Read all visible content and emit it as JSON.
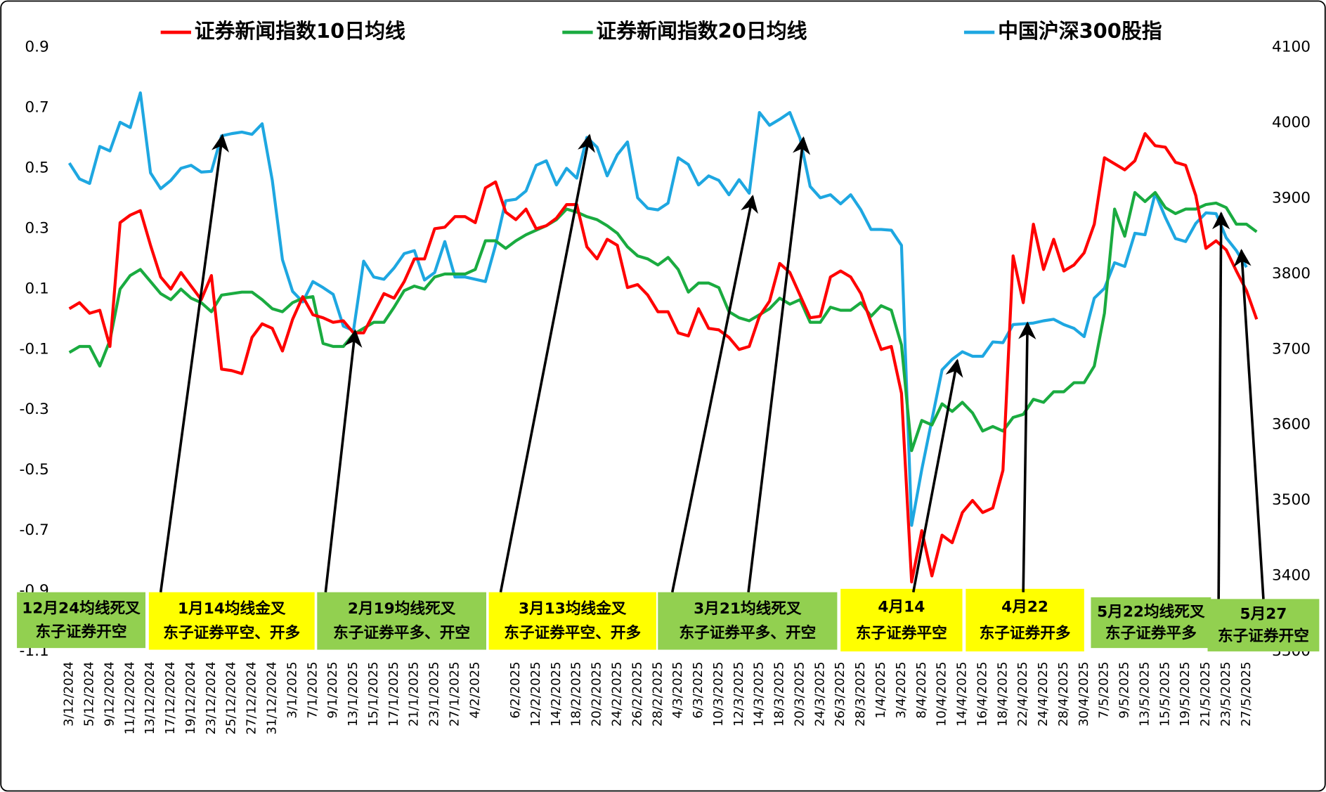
{
  "chart_data": {
    "type": "line",
    "legend": "top",
    "categories": [
      "3/12/2024",
      null,
      "5/12/2024",
      null,
      "9/12/2024",
      null,
      "11/12/2024",
      null,
      "13/12/2024",
      null,
      "17/12/2024",
      null,
      "19/12/2024",
      null,
      "23/12/2024",
      null,
      "25/12/2024",
      null,
      "27/12/2024",
      null,
      "31/12/2024",
      null,
      "3/1/2025",
      null,
      "7/1/2025",
      null,
      "9/1/2025",
      null,
      "13/1/2025",
      null,
      "15/1/2025",
      null,
      "17/1/2025",
      null,
      "21/1/2025",
      null,
      "23/1/2025",
      null,
      "27/1/2025",
      null,
      "4/2/2025",
      null,
      null,
      null,
      "6/2/2025",
      null,
      "12/2/2025",
      null,
      "14/2/2025",
      null,
      "18/2/2025",
      null,
      "20/2/2025",
      null,
      "24/2/2025",
      null,
      "26/2/2025",
      null,
      "28/2/2025",
      null,
      "4/3/2025",
      null,
      "6/3/2025",
      null,
      "10/3/2025",
      null,
      "12/3/2025",
      null,
      "14/3/2025",
      null,
      "18/3/2025",
      null,
      "20/3/2025",
      null,
      "24/3/2025",
      null,
      "26/3/2025",
      null,
      "28/3/2025",
      null,
      "1/4/2025",
      null,
      "3/4/2025",
      null,
      "8/4/2025",
      null,
      "10/4/2025",
      null,
      "14/4/2025",
      null,
      "16/4/2025",
      null,
      "18/4/2025",
      null,
      "22/4/2025",
      null,
      "24/4/2025",
      null,
      "28/4/2025",
      null,
      "30/4/2025",
      null,
      "7/5/2025",
      null,
      "9/5/2025",
      null,
      "13/5/2025",
      null,
      "15/5/2025",
      null,
      "19/5/2025",
      null,
      "21/5/2025",
      null,
      "23/5/2025",
      null,
      "27/5/2025",
      null
    ],
    "series": [
      {
        "name": "证券新闻指数10日均线",
        "color": "#ff0000",
        "values": [
          0.035,
          0.055,
          0.02,
          0.03,
          -0.09,
          0.32,
          0.345,
          0.36,
          0.245,
          0.14,
          0.1,
          0.155,
          0.11,
          0.065,
          0.145,
          -0.165,
          -0.17,
          -0.18,
          -0.06,
          -0.015,
          -0.03,
          -0.105,
          0.0,
          0.075,
          0.015,
          0.005,
          -0.01,
          -0.005,
          -0.045,
          -0.045,
          0.02,
          0.085,
          0.07,
          0.125,
          0.2,
          0.2,
          0.3,
          0.305,
          0.34,
          0.34,
          0.32,
          0.435,
          0.455,
          0.355,
          0.33,
          0.365,
          0.3,
          0.31,
          0.335,
          0.38,
          0.38,
          0.24,
          0.2,
          0.265,
          0.245,
          0.105,
          0.115,
          0.08,
          0.025,
          0.025,
          -0.045,
          -0.055,
          0.035,
          -0.03,
          -0.035,
          -0.06,
          -0.1,
          -0.09,
          0.01,
          0.06,
          0.185,
          0.155,
          0.08,
          0.005,
          0.01,
          0.14,
          0.16,
          0.14,
          0.085,
          -0.01,
          -0.1,
          -0.09,
          -0.245,
          -0.87,
          -0.7,
          -0.85,
          -0.715,
          -0.74,
          -0.64,
          -0.6,
          -0.64,
          -0.625,
          -0.5,
          0.21,
          0.055,
          0.315,
          0.165,
          0.265,
          0.16,
          0.18,
          0.22,
          0.315,
          0.535,
          0.515,
          0.495,
          0.525,
          0.615,
          0.575,
          0.57,
          0.52,
          0.51,
          0.41,
          0.235,
          0.26,
          0.23,
          0.16,
          0.095,
          0.0
        ]
      },
      {
        "name": "证券新闻指数20日均线",
        "color": "#1aab40",
        "values": [
          -0.11,
          -0.09,
          -0.09,
          -0.155,
          -0.07,
          0.1,
          0.145,
          0.165,
          0.125,
          0.085,
          0.065,
          0.1,
          0.07,
          0.055,
          0.025,
          0.08,
          0.085,
          0.09,
          0.09,
          0.065,
          0.035,
          0.025,
          0.055,
          0.07,
          0.075,
          -0.08,
          -0.09,
          -0.09,
          -0.05,
          -0.03,
          -0.01,
          -0.01,
          0.04,
          0.095,
          0.11,
          0.1,
          0.14,
          0.15,
          0.15,
          0.15,
          0.165,
          0.26,
          0.26,
          0.235,
          0.26,
          0.28,
          0.295,
          0.31,
          0.33,
          0.365,
          0.355,
          0.34,
          0.33,
          0.31,
          0.285,
          0.24,
          0.21,
          0.2,
          0.18,
          0.205,
          0.165,
          0.09,
          0.12,
          0.12,
          0.105,
          0.025,
          0.005,
          -0.005,
          0.015,
          0.035,
          0.07,
          0.05,
          0.065,
          -0.01,
          -0.01,
          0.04,
          0.03,
          0.03,
          0.055,
          0.01,
          0.045,
          0.03,
          -0.085,
          -0.435,
          -0.335,
          -0.35,
          -0.28,
          -0.305,
          -0.275,
          -0.31,
          -0.37,
          -0.355,
          -0.37,
          -0.325,
          -0.315,
          -0.265,
          -0.275,
          -0.24,
          -0.24,
          -0.21,
          -0.21,
          -0.155,
          0.02,
          0.365,
          0.275,
          0.42,
          0.39,
          0.42,
          0.37,
          0.35,
          0.365,
          0.365,
          0.38,
          0.385,
          0.37,
          0.315,
          0.315,
          0.29
        ]
      },
      {
        "name": "中国沪深300股指",
        "color": "#1ea7e1",
        "axis": "y2",
        "values": [
          3947,
          3926,
          3920,
          3969,
          3963,
          4001,
          3994,
          4040,
          3934,
          3913,
          3924,
          3940,
          3944,
          3935,
          3936,
          3983,
          3986,
          3988,
          3985,
          3999,
          3924,
          3819,
          3777,
          3763,
          3790,
          3782,
          3773,
          3731,
          3725,
          3817,
          3796,
          3793,
          3808,
          3827,
          3831,
          3792,
          3802,
          3843,
          3796,
          3796,
          3793,
          3790,
          3838,
          3897,
          3899,
          3910,
          3944,
          3950,
          3918,
          3940,
          3927,
          3981,
          3968,
          3930,
          3958,
          3975,
          3901,
          3887,
          3885,
          3894,
          3954,
          3945,
          3918,
          3930,
          3924,
          3905,
          3925,
          3907,
          4014,
          3997,
          4005,
          4014,
          3980,
          3916,
          3901,
          3905,
          3893,
          3905,
          3885,
          3859,
          3859,
          3858,
          3838,
          3467,
          3541,
          3607,
          3673,
          3687,
          3697,
          3691,
          3691,
          3710,
          3709,
          3733,
          3734,
          3735,
          3738,
          3740,
          3733,
          3728,
          3717,
          3768,
          3781,
          3815,
          3810,
          3854,
          3852,
          3907,
          3875,
          3847,
          3843,
          3867,
          3881,
          3880,
          3848,
          3831,
          3809,
          null
        ]
      }
    ],
    "ylim": [
      -1.1,
      0.9
    ],
    "yticks": [
      -1.1,
      -0.9,
      -0.7,
      -0.5,
      -0.3,
      -0.1,
      0.1,
      0.3,
      0.5,
      0.7,
      0.9
    ],
    "y2lim": [
      3300,
      4100
    ],
    "y2ticks": [
      3300,
      3400,
      3500,
      3600,
      3700,
      3800,
      3900,
      4000,
      4100
    ],
    "annotations": [
      {
        "lines": [
          "12月24均线死叉",
          "东子证券开空"
        ],
        "color": "#92d050"
      },
      {
        "lines": [
          "1月14均线金叉",
          "东子证券平空、开多"
        ],
        "color": "#ffff00"
      },
      {
        "lines": [
          "2月19均线死叉",
          "东子证券平多、开空"
        ],
        "color": "#92d050"
      },
      {
        "lines": [
          "3月13均线金叉",
          "东子证券平空、开多"
        ],
        "color": "#ffff00"
      },
      {
        "lines": [
          "3月21均线死叉",
          "东子证券平多、开空"
        ],
        "color": "#92d050"
      },
      {
        "lines": [
          "4月14",
          "东子证券平空"
        ],
        "color": "#ffff00"
      },
      {
        "lines": [
          "4月22",
          "东子证券开多"
        ],
        "color": "#ffff00"
      },
      {
        "lines": [
          "5月22均线死叉",
          "东子证券平多"
        ],
        "color": "#92d050"
      },
      {
        "lines": [
          "5月27",
          "东子证券开空"
        ],
        "color": "#92d050"
      }
    ]
  }
}
